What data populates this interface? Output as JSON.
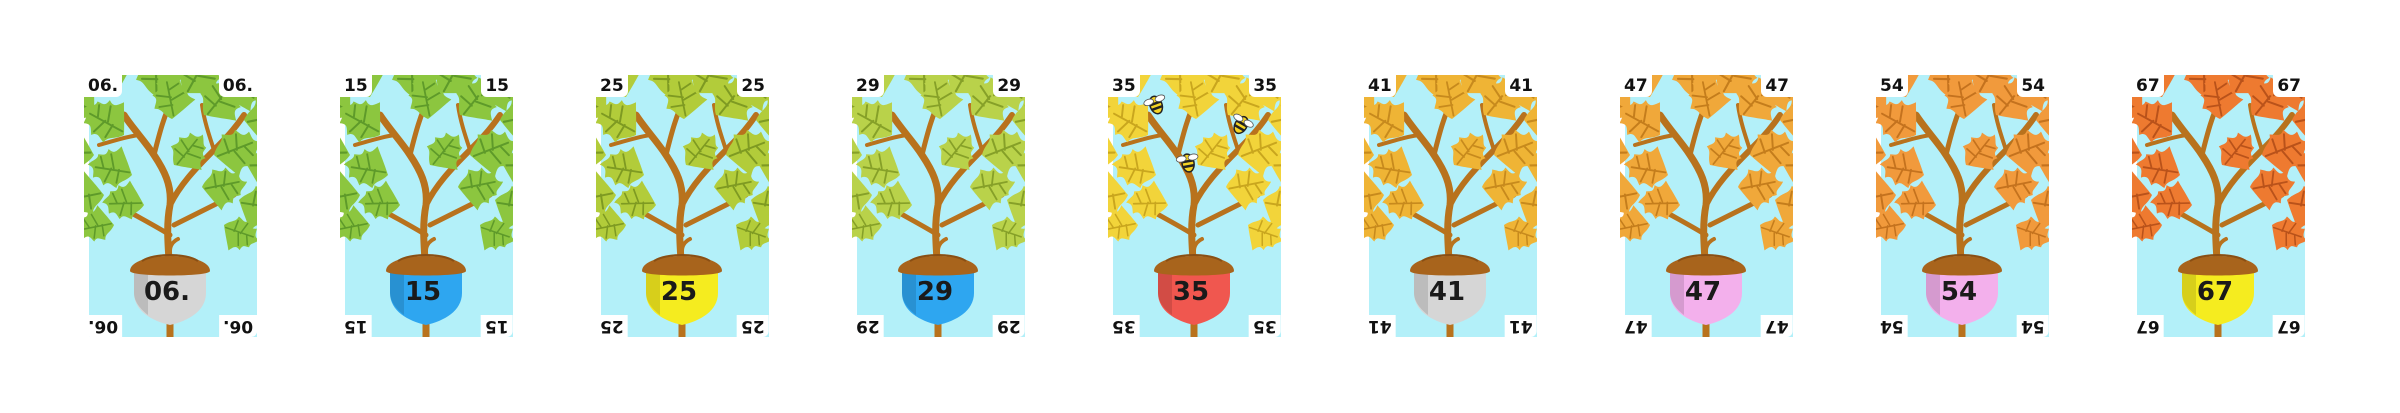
{
  "cards": [
    {
      "number": "06.",
      "leaf_color": "#8cc63f",
      "leaf_vein": "#5e9a2a",
      "acorn_color": "#d6d6d6",
      "icon": "oak-tree-icon"
    },
    {
      "number": "15",
      "leaf_color": "#8cc63f",
      "leaf_vein": "#5e9a2a",
      "acorn_color": "#2ea6f0",
      "icon": "oak-tree-icon"
    },
    {
      "number": "25",
      "leaf_color": "#b2cc3a",
      "leaf_vein": "#7e9a22",
      "acorn_color": "#f5ec1f",
      "icon": "oak-tree-icon"
    },
    {
      "number": "29",
      "leaf_color": "#b9d24a",
      "leaf_vein": "#86a028",
      "acorn_color": "#2ea6f0",
      "icon": "oak-tree-icon"
    },
    {
      "number": "35",
      "leaf_color": "#f2d43a",
      "leaf_vein": "#c9a61e",
      "acorn_color": "#f0574f",
      "icon": "oak-tree-with-bees-icon"
    },
    {
      "number": "41",
      "leaf_color": "#efb435",
      "leaf_vein": "#c78a1d",
      "acorn_color": "#d6d6d6",
      "icon": "oak-tree-icon"
    },
    {
      "number": "47",
      "leaf_color": "#f0a83a",
      "leaf_vein": "#c47d1c",
      "acorn_color": "#f3b0ec",
      "icon": "oak-tree-icon"
    },
    {
      "number": "54",
      "leaf_color": "#f19a3c",
      "leaf_vein": "#c4721e",
      "acorn_color": "#f3b0ec",
      "icon": "oak-tree-icon"
    },
    {
      "number": "67",
      "leaf_color": "#ee7a30",
      "leaf_vein": "#b9521a",
      "acorn_color": "#f5ec1f",
      "icon": "oak-tree-icon"
    }
  ],
  "colors": {
    "sky": "#b3f0f9",
    "branch": "#b8721d",
    "acorn_cap": "#a8641c",
    "acorn_cap_dark": "#8a4f14"
  }
}
